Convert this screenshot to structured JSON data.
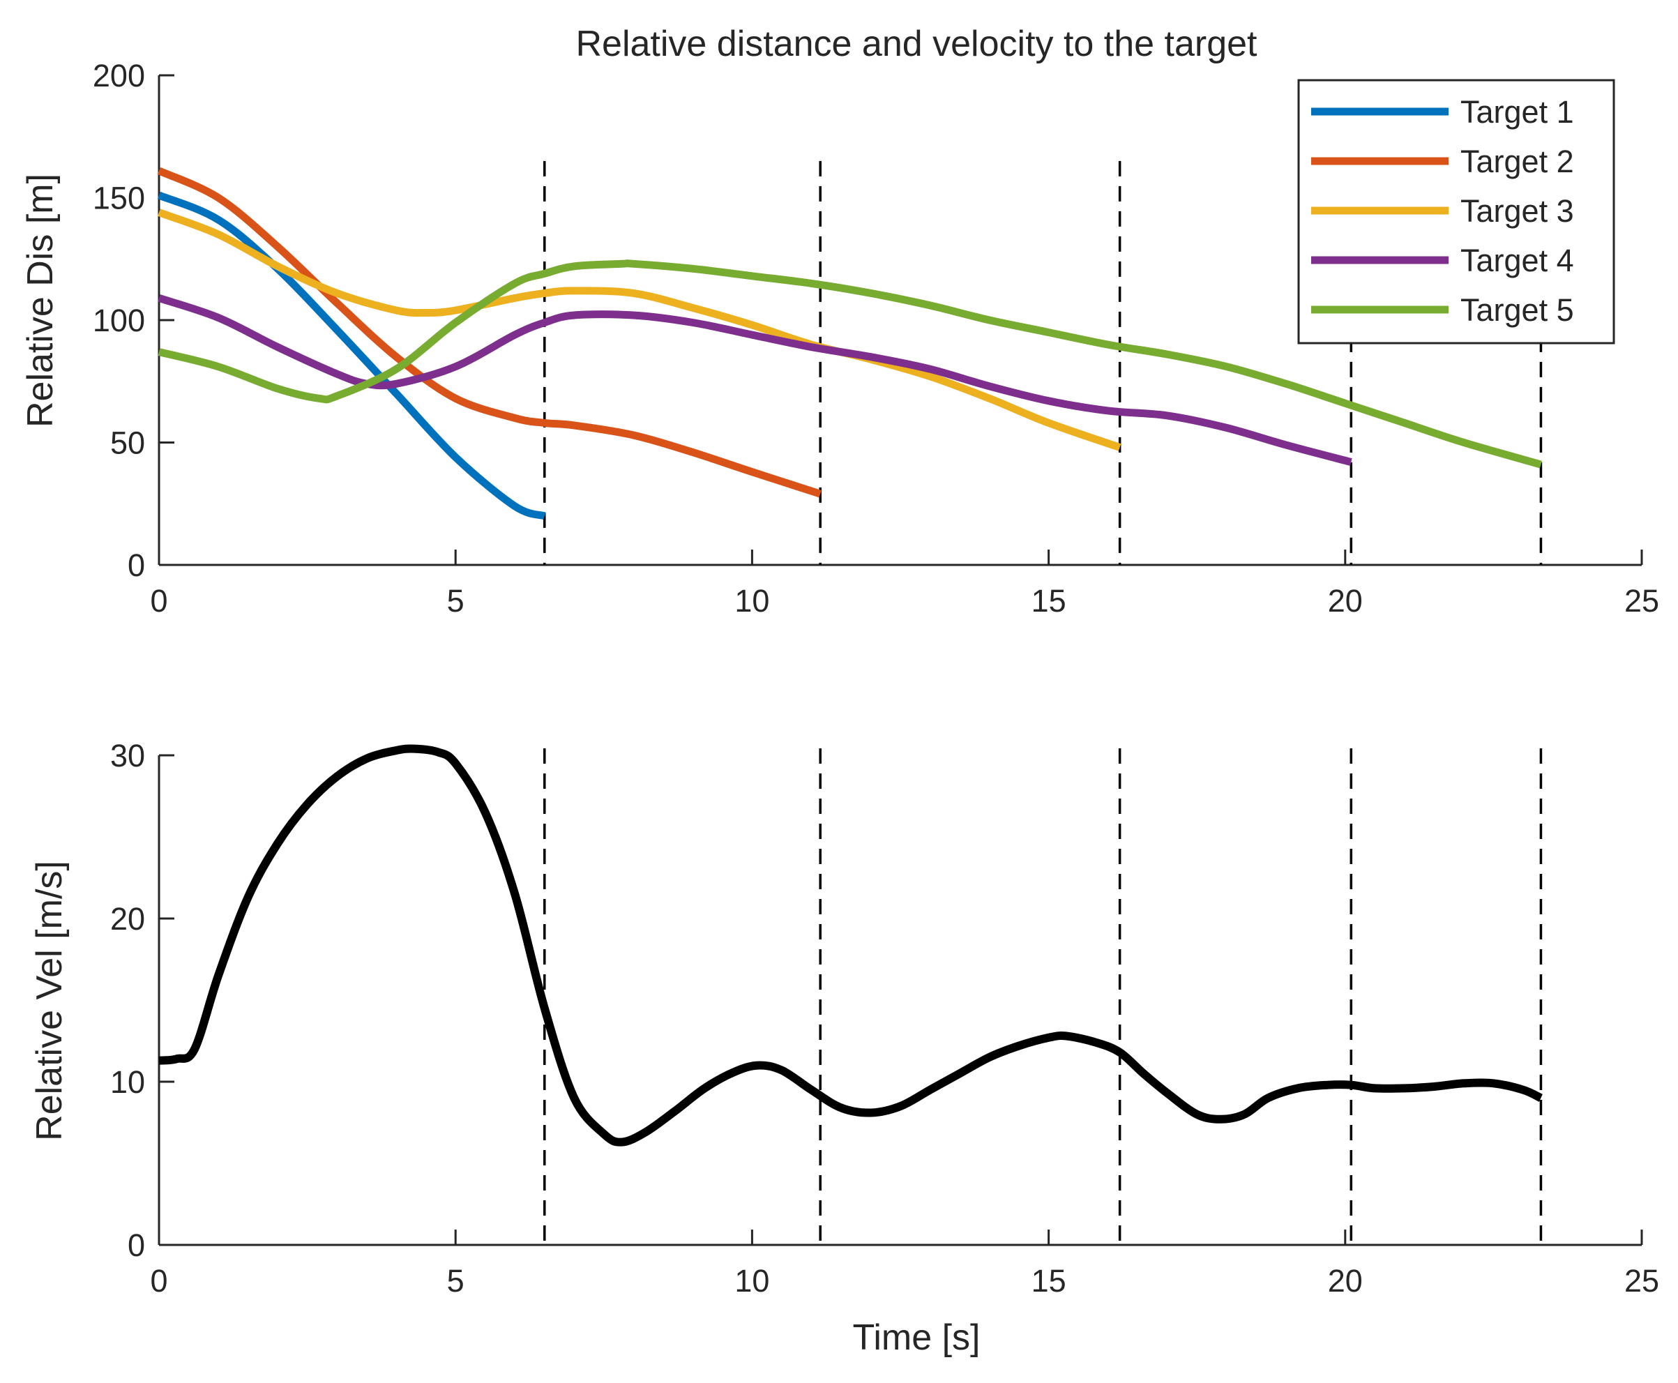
{
  "chart_data": [
    {
      "type": "line",
      "title": "Relative distance and velocity to the target",
      "xlabel": "",
      "ylabel": "Relative Dis [m]",
      "xlim": [
        0,
        25
      ],
      "ylim": [
        0,
        200
      ],
      "xticks": [
        0,
        5,
        10,
        15,
        20,
        25
      ],
      "yticks": [
        0,
        50,
        100,
        150,
        200
      ],
      "xtick_labels": [
        "0",
        "5",
        "10",
        "15",
        "20",
        "25"
      ],
      "ytick_labels": [
        "0",
        "50",
        "100",
        "150",
        "200"
      ],
      "grid": false,
      "legend_position": "top-right",
      "dashed_vlines": [
        6.5,
        11.15,
        16.2,
        20.1,
        23.3
      ],
      "series": [
        {
          "name": "Target 1",
          "color": "#0072BD",
          "x": [
            0,
            1,
            2,
            3,
            4,
            5,
            6,
            6.5
          ],
          "y": [
            151,
            141,
            121,
            96,
            70,
            44,
            24,
            20
          ]
        },
        {
          "name": "Target 2",
          "color": "#D95319",
          "x": [
            0,
            1,
            2,
            3,
            4,
            5,
            6,
            6.5,
            7,
            8,
            9,
            10,
            11.15
          ],
          "y": [
            161,
            150,
            130,
            107,
            85,
            68,
            60,
            58,
            57,
            53,
            46,
            38,
            29
          ]
        },
        {
          "name": "Target 3",
          "color": "#EDB120",
          "x": [
            0,
            1,
            2,
            3,
            4,
            4.5,
            5,
            6,
            6.5,
            7,
            8,
            9,
            10,
            11,
            12,
            13,
            14,
            15,
            16.2
          ],
          "y": [
            144,
            135,
            122,
            111,
            104,
            103,
            104,
            109,
            111,
            112,
            111,
            105,
            98,
            90,
            84,
            77,
            68,
            58,
            48
          ]
        },
        {
          "name": "Target 4",
          "color": "#7E2F8E",
          "x": [
            0,
            1,
            2,
            3,
            3.5,
            4,
            5,
            6,
            6.5,
            7,
            8,
            9,
            10,
            11,
            12,
            13,
            14,
            15,
            16,
            17,
            18,
            19,
            20.1
          ],
          "y": [
            109,
            101,
            89,
            78,
            74,
            74,
            81,
            94,
            99,
            102,
            102,
            99,
            94,
            89,
            85,
            80,
            73,
            67,
            63,
            61,
            56,
            49,
            42
          ]
        },
        {
          "name": "Target 5",
          "color": "#77AC30",
          "x": [
            0,
            1,
            2,
            2.7,
            3,
            4,
            5,
            6,
            6.5,
            7,
            7.8,
            8,
            9,
            10,
            11,
            12,
            13,
            14,
            15,
            16,
            17,
            18,
            19,
            20,
            21,
            22,
            23.3
          ],
          "y": [
            87,
            81,
            72,
            68,
            69,
            80,
            99,
            115,
            119,
            122,
            123,
            123,
            121,
            118,
            115,
            111,
            106,
            100,
            95,
            90,
            86,
            81,
            74,
            66,
            58,
            50,
            41
          ]
        }
      ]
    },
    {
      "type": "line",
      "title": "",
      "xlabel": "Time [s]",
      "ylabel": "Relative Vel [m/s]",
      "xlim": [
        0,
        25
      ],
      "ylim": [
        0,
        30
      ],
      "xticks": [
        0,
        5,
        10,
        15,
        20,
        25
      ],
      "yticks": [
        0,
        10,
        20,
        30
      ],
      "xtick_labels": [
        "0",
        "5",
        "10",
        "15",
        "20",
        "25"
      ],
      "ytick_labels": [
        "0",
        "10",
        "20",
        "30"
      ],
      "grid": false,
      "dashed_vlines": [
        6.5,
        11.15,
        16.2,
        20.1,
        23.3
      ],
      "series": [
        {
          "name": "Relative Vel",
          "color": "#000000",
          "x": [
            0,
            0.3,
            0.6,
            1,
            1.5,
            2,
            2.5,
            3,
            3.5,
            4,
            4.3,
            4.7,
            5,
            5.5,
            6,
            6.5,
            7,
            7.5,
            7.8,
            8.2,
            8.7,
            9.2,
            9.7,
            10.1,
            10.5,
            11,
            11.5,
            12,
            12.5,
            13,
            13.5,
            14,
            14.5,
            15,
            15.3,
            15.8,
            16.2,
            16.6,
            17,
            17.5,
            17.9,
            18.3,
            18.7,
            19.2,
            19.7,
            20.1,
            20.5,
            21,
            21.5,
            22,
            22.5,
            23,
            23.3
          ],
          "y": [
            11.3,
            11.4,
            12.0,
            16.5,
            21.3,
            24.6,
            27.0,
            28.7,
            29.8,
            30.3,
            30.4,
            30.2,
            29.5,
            26.5,
            21.5,
            14.5,
            9.0,
            6.8,
            6.3,
            6.9,
            8.2,
            9.6,
            10.6,
            11.0,
            10.7,
            9.5,
            8.4,
            8.1,
            8.5,
            9.5,
            10.5,
            11.5,
            12.2,
            12.7,
            12.8,
            12.4,
            11.8,
            10.5,
            9.3,
            8.0,
            7.7,
            8.0,
            9.0,
            9.6,
            9.8,
            9.8,
            9.6,
            9.6,
            9.7,
            9.9,
            9.9,
            9.5,
            9.0
          ]
        }
      ]
    }
  ]
}
